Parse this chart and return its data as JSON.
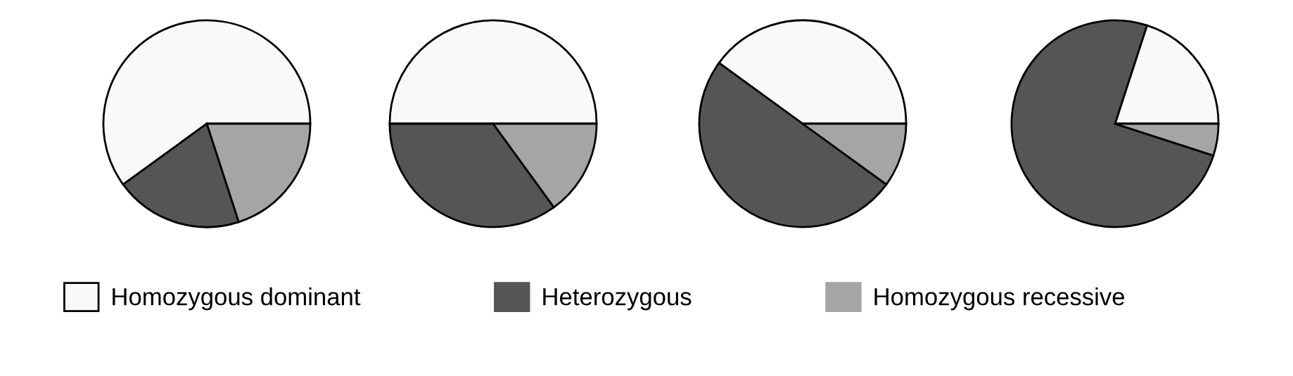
{
  "chart_data": [
    {
      "type": "pie",
      "categories": [
        "Homozygous dominant",
        "Heterozygous",
        "Homozygous recessive"
      ],
      "values": [
        60,
        20,
        20
      ],
      "colors": [
        "#f9f9f9",
        "#555555",
        "#a5a5a5"
      ],
      "legend": "bottom"
    },
    {
      "type": "pie",
      "categories": [
        null,
        null,
        null
      ],
      "values": [
        50,
        35,
        15
      ],
      "colors": [
        "#f9f9f9",
        "#555555",
        "#a5a5a5"
      ]
    },
    {
      "type": "pie",
      "categories": [
        null,
        null,
        null
      ],
      "values": [
        40,
        50,
        10
      ],
      "colors": [
        "#f9f9f9",
        "#555555",
        "#a5a5a5"
      ]
    },
    {
      "type": "pie",
      "categories": [
        null,
        null,
        null
      ],
      "values": [
        20,
        75,
        5
      ],
      "colors": [
        "#f9f9f9",
        "#555555",
        "#a5a5a5"
      ]
    }
  ]
}
